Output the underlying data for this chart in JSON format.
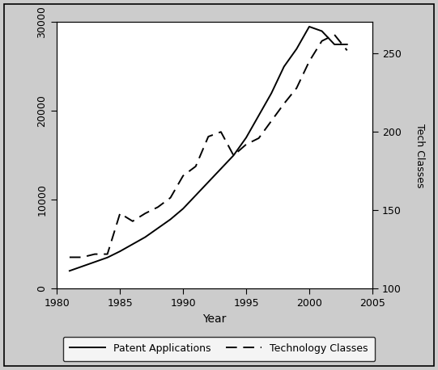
{
  "years": [
    1981,
    1982,
    1983,
    1984,
    1985,
    1986,
    1987,
    1988,
    1989,
    1990,
    1991,
    1992,
    1993,
    1994,
    1995,
    1996,
    1997,
    1998,
    1999,
    2000,
    2001,
    2002,
    2003
  ],
  "patent_applications": [
    2000,
    2500,
    3000,
    3500,
    4200,
    5000,
    5800,
    6800,
    7800,
    9000,
    10500,
    12000,
    13500,
    15000,
    17000,
    19500,
    22000,
    25000,
    27000,
    29500,
    29000,
    27500,
    27500
  ],
  "tech_classes": [
    120,
    120,
    122,
    122,
    148,
    143,
    148,
    152,
    158,
    172,
    178,
    197,
    200,
    185,
    192,
    196,
    207,
    218,
    228,
    245,
    258,
    262,
    252
  ],
  "xlabel": "Year",
  "ylabel_right": "Tech Classes",
  "xlim": [
    1980,
    2005
  ],
  "ylim_left": [
    0,
    30000
  ],
  "ylim_right": [
    100,
    270
  ],
  "xticks": [
    1980,
    1985,
    1990,
    1995,
    2000,
    2005
  ],
  "yticks_left": [
    0,
    10000,
    20000,
    30000
  ],
  "yticks_right": [
    100,
    150,
    200,
    250
  ],
  "line1_color": "#000000",
  "line2_color": "#000000",
  "line1_label": "Patent Applications",
  "line2_label": "Technology Classes",
  "line_width": 1.4,
  "bg_color": "#ffffff",
  "fig_bg_color": "#cccccc",
  "ytick_labels_left": [
    "0",
    "10000",
    "20000",
    "30000"
  ]
}
